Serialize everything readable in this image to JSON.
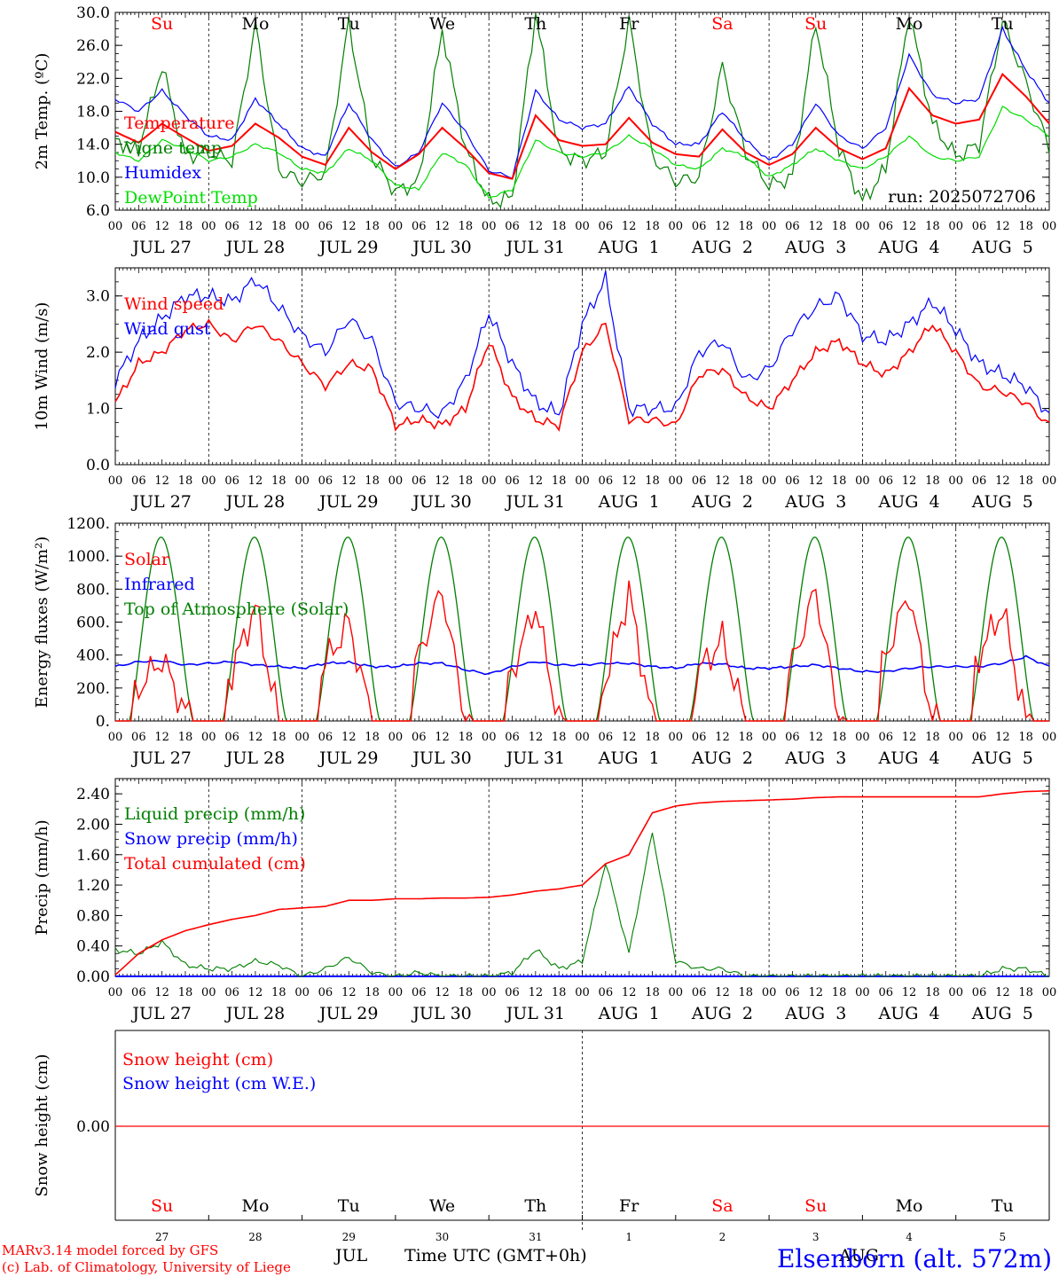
{
  "colors": {
    "red": "#ff0000",
    "green": "#007f00",
    "blue": "#0000ff",
    "lightgreen": "#00dd00",
    "black": "#000000"
  },
  "days": {
    "top": [
      "Su",
      "Mo",
      "Tu",
      "We",
      "Th",
      "Fr",
      "Sa",
      "Su",
      "Mo",
      "Tu"
    ],
    "top_colors": [
      "red",
      "black",
      "black",
      "black",
      "black",
      "black",
      "red",
      "red",
      "black",
      "black"
    ],
    "date_labels": [
      "JUL 27",
      "JUL 28",
      "JUL 29",
      "JUL 30",
      "JUL 31",
      "AUG  1",
      "AUG  2",
      "AUG  3",
      "AUG  4",
      "AUG  5"
    ],
    "hour_labels": [
      "00",
      "06",
      "12",
      "18"
    ],
    "final_hour": "00",
    "bottom_days": [
      "Su",
      "Mo",
      "Tu",
      "We",
      "Th",
      "Fr",
      "Sa",
      "Su",
      "Mo",
      "Tu"
    ],
    "bottom_day_colors": [
      "red",
      "black",
      "black",
      "black",
      "black",
      "black",
      "red",
      "red",
      "black",
      "black"
    ],
    "bottom_dates": [
      "27",
      "28",
      "29",
      "30",
      "31",
      "1",
      "2",
      "3",
      "4",
      "5"
    ],
    "month_left": "JUL",
    "month_right": "AUG"
  },
  "footer": {
    "model_line": "MARv3.14 model forced by GFS",
    "lab_line": "(c) Lab. of Climatology, University of Liege",
    "axis_title": "Time UTC (GMT+0h)",
    "station": "Elsenborn (alt. 572m)"
  },
  "chart_data": [
    {
      "type": "line",
      "ylabel": "2m Temp. (ºC)",
      "ylim": [
        6.0,
        30.0
      ],
      "ytick_values": [
        6,
        10,
        14,
        18,
        22,
        26,
        30
      ],
      "ytick_labels": [
        "6.0",
        "10.0",
        "14.0",
        "18.0",
        "22.0",
        "26.0",
        "30.0"
      ],
      "annotation": "run: 2025072706",
      "x_hours": [
        0,
        6,
        12,
        18,
        24,
        30,
        36,
        42,
        48,
        54,
        60,
        66,
        72,
        78,
        84,
        90,
        96,
        102,
        108,
        114,
        120,
        126,
        132,
        138,
        144,
        150,
        156,
        162,
        168,
        174,
        180,
        186,
        192,
        198,
        204,
        210,
        216,
        222,
        228,
        234,
        240
      ],
      "series": [
        {
          "name": "Temperature",
          "color": "red",
          "values": [
            15.5,
            14.2,
            16.5,
            14.8,
            13.2,
            13.8,
            16.5,
            14.8,
            12.5,
            11.5,
            16.0,
            13.0,
            11.0,
            12.8,
            16.0,
            13.5,
            10.5,
            9.8,
            17.5,
            14.5,
            13.8,
            14.0,
            17.2,
            14.2,
            12.8,
            12.5,
            15.8,
            13.0,
            11.5,
            12.8,
            16.0,
            13.5,
            12.2,
            13.5,
            20.8,
            17.5,
            16.5,
            17.0,
            22.5,
            19.8,
            16.5
          ]
        },
        {
          "name": "Vigne temp",
          "color": "green",
          "values": [
            14.5,
            13.5,
            23.5,
            12.5,
            13.0,
            12.0,
            28.5,
            10.8,
            9.5,
            10.5,
            28.8,
            12.5,
            8.2,
            9.5,
            28.0,
            13.5,
            7.0,
            7.5,
            30.0,
            13.0,
            12.0,
            13.0,
            29.0,
            12.5,
            9.5,
            10.0,
            23.5,
            13.0,
            9.0,
            10.0,
            28.8,
            13.5,
            7.0,
            11.0,
            30.0,
            16.5,
            12.5,
            14.0,
            29.0,
            21.5,
            13.5
          ]
        },
        {
          "name": "Humidex",
          "color": "blue",
          "values": [
            19.5,
            18.0,
            20.5,
            17.5,
            15.0,
            14.5,
            19.5,
            16.5,
            13.5,
            12.5,
            19.0,
            14.5,
            11.2,
            13.0,
            19.0,
            15.5,
            10.8,
            10.0,
            20.5,
            17.0,
            16.0,
            16.5,
            21.0,
            16.5,
            14.0,
            14.0,
            18.0,
            14.5,
            12.0,
            14.0,
            19.0,
            15.0,
            13.5,
            16.0,
            24.8,
            20.0,
            19.0,
            19.5,
            28.0,
            23.0,
            19.0
          ]
        },
        {
          "name": "DewPoint Temp",
          "color": "lightgreen",
          "values": [
            13.0,
            12.0,
            14.5,
            13.5,
            12.0,
            12.5,
            14.0,
            13.0,
            11.0,
            10.5,
            13.5,
            12.0,
            9.0,
            8.5,
            13.0,
            11.5,
            7.5,
            8.5,
            14.5,
            13.0,
            12.5,
            13.0,
            15.0,
            13.5,
            11.5,
            11.0,
            13.5,
            12.5,
            10.0,
            11.5,
            13.5,
            12.0,
            11.0,
            12.5,
            15.0,
            12.5,
            12.0,
            12.5,
            18.5,
            17.0,
            15.0
          ]
        }
      ]
    },
    {
      "type": "line",
      "ylabel": "10m Wind (m/s)",
      "ylim": [
        0.0,
        3.5
      ],
      "ytick_values": [
        0,
        1,
        2,
        3
      ],
      "ytick_labels": [
        "0.0",
        "1.0",
        "2.0",
        "3.0"
      ],
      "x_hours": [
        0,
        6,
        12,
        18,
        24,
        30,
        36,
        42,
        48,
        54,
        60,
        66,
        72,
        78,
        84,
        90,
        96,
        102,
        108,
        114,
        120,
        126,
        132,
        138,
        144,
        150,
        156,
        162,
        168,
        174,
        180,
        186,
        192,
        198,
        204,
        210,
        216,
        222,
        228,
        234,
        240
      ],
      "series": [
        {
          "name": "Wind speed",
          "color": "red",
          "values": [
            1.1,
            1.8,
            2.0,
            2.4,
            2.5,
            2.2,
            2.5,
            2.2,
            1.8,
            1.4,
            1.8,
            1.7,
            0.7,
            0.8,
            0.7,
            1.0,
            2.2,
            1.2,
            0.8,
            0.7,
            2.0,
            2.5,
            0.8,
            0.8,
            0.7,
            1.6,
            1.7,
            1.2,
            1.0,
            1.5,
            2.0,
            2.2,
            1.8,
            1.6,
            2.0,
            2.5,
            2.0,
            1.4,
            1.3,
            1.1,
            0.7
          ]
        },
        {
          "name": "Wind gust",
          "color": "blue",
          "values": [
            1.5,
            2.2,
            2.6,
            3.0,
            3.0,
            2.9,
            3.3,
            2.8,
            2.3,
            2.0,
            2.6,
            2.2,
            1.1,
            1.0,
            0.9,
            1.5,
            2.7,
            1.8,
            1.1,
            0.9,
            2.5,
            3.3,
            1.0,
            1.0,
            1.0,
            2.0,
            2.2,
            1.5,
            1.7,
            2.4,
            2.8,
            3.0,
            2.3,
            2.2,
            2.5,
            2.9,
            2.4,
            1.8,
            1.6,
            1.4,
            0.9
          ]
        }
      ]
    },
    {
      "type": "line",
      "ylabel": "Energy fluxes (W/m²)",
      "ylim": [
        0,
        1200
      ],
      "ytick_values": [
        0,
        200,
        400,
        600,
        800,
        1000,
        1200
      ],
      "ytick_labels": [
        "0.",
        "200.",
        "400.",
        "600.",
        "800.",
        "1000.",
        "1200."
      ],
      "x_hours": [
        0,
        6,
        12,
        18,
        24,
        30,
        36,
        42,
        48,
        54,
        60,
        66,
        72,
        78,
        84,
        90,
        96,
        102,
        108,
        114,
        120,
        126,
        132,
        138,
        144,
        150,
        156,
        162,
        168,
        174,
        180,
        186,
        192,
        198,
        204,
        210,
        216,
        222,
        228,
        234,
        240
      ],
      "series": [
        {
          "name": "Solar",
          "color": "red",
          "values": [
            0,
            200,
            380,
            50,
            0,
            300,
            700,
            0,
            0,
            350,
            600,
            0,
            0,
            400,
            800,
            0,
            0,
            300,
            700,
            0,
            0,
            250,
            780,
            0,
            0,
            300,
            500,
            0,
            0,
            350,
            800,
            0,
            0,
            400,
            780,
            0,
            0,
            400,
            680,
            0,
            0
          ]
        },
        {
          "name": "Infrared",
          "color": "blue",
          "values": [
            330,
            360,
            365,
            340,
            350,
            360,
            340,
            330,
            320,
            350,
            355,
            330,
            330,
            350,
            350,
            310,
            285,
            330,
            360,
            340,
            340,
            350,
            350,
            330,
            320,
            350,
            345,
            320,
            320,
            330,
            340,
            320,
            300,
            300,
            320,
            330,
            330,
            330,
            350,
            390,
            330
          ]
        },
        {
          "name": "Top of Atmosphere (Solar)",
          "color": "green",
          "peak": 1115,
          "sunrise_hour": 3.5,
          "sunset_hour": 20.0
        }
      ]
    },
    {
      "type": "line",
      "ylabel": "Precip (mm/h)",
      "ylim": [
        0.0,
        2.6
      ],
      "ytick_values": [
        0,
        0.4,
        0.8,
        1.2,
        1.6,
        2.0,
        2.4
      ],
      "ytick_labels": [
        "0.00",
        "0.40",
        "0.80",
        "1.20",
        "1.60",
        "2.00",
        "2.40"
      ],
      "x_hours": [
        0,
        6,
        12,
        18,
        24,
        30,
        36,
        42,
        48,
        54,
        60,
        66,
        72,
        78,
        84,
        90,
        96,
        102,
        108,
        114,
        120,
        126,
        132,
        138,
        144,
        150,
        156,
        162,
        168,
        174,
        180,
        186,
        192,
        198,
        204,
        210,
        216,
        222,
        228,
        234,
        240
      ],
      "series": [
        {
          "name": "Liquid precip (mm/h)",
          "color": "green",
          "values": [
            0.35,
            0.3,
            0.45,
            0.15,
            0.1,
            0.1,
            0.2,
            0.15,
            0.0,
            0.1,
            0.25,
            0.05,
            0.0,
            0.05,
            0.0,
            0.0,
            0.0,
            0.05,
            0.35,
            0.1,
            0.2,
            1.5,
            0.3,
            1.9,
            0.2,
            0.1,
            0.1,
            0.0,
            0.0,
            0.0,
            0.0,
            0.0,
            0.0,
            0.0,
            0.0,
            0.0,
            0.0,
            0.0,
            0.1,
            0.1,
            0.0
          ]
        },
        {
          "name": "Snow precip (mm/h)",
          "color": "blue",
          "values": [
            0,
            0,
            0,
            0,
            0,
            0,
            0,
            0,
            0,
            0,
            0,
            0,
            0,
            0,
            0,
            0,
            0,
            0,
            0,
            0,
            0,
            0,
            0,
            0,
            0,
            0,
            0,
            0,
            0,
            0,
            0,
            0,
            0,
            0,
            0,
            0,
            0,
            0,
            0,
            0,
            0
          ]
        },
        {
          "name": "Total cumulated (cm)",
          "color": "red",
          "values": [
            0.02,
            0.3,
            0.48,
            0.6,
            0.68,
            0.75,
            0.8,
            0.88,
            0.9,
            0.92,
            1.0,
            1.0,
            1.02,
            1.02,
            1.03,
            1.03,
            1.04,
            1.07,
            1.12,
            1.15,
            1.2,
            1.48,
            1.6,
            2.15,
            2.24,
            2.28,
            2.3,
            2.31,
            2.32,
            2.33,
            2.35,
            2.36,
            2.36,
            2.36,
            2.36,
            2.36,
            2.36,
            2.36,
            2.4,
            2.43,
            2.44
          ]
        }
      ]
    },
    {
      "type": "line",
      "ylabel": "Snow height (cm)",
      "ytick_values": [
        0
      ],
      "ytick_labels": [
        "0.00"
      ],
      "series": [
        {
          "name": "Snow height (cm)",
          "color": "red",
          "values": [
            0,
            0
          ]
        },
        {
          "name": "Snow height (cm W.E.)",
          "color": "blue",
          "values": [
            0,
            0
          ]
        }
      ]
    }
  ]
}
